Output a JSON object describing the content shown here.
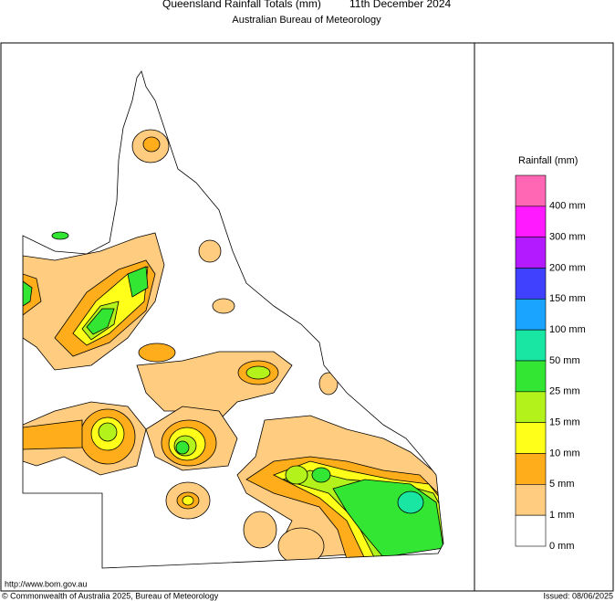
{
  "header": {
    "title": "Queensland Rainfall Totals (mm)",
    "date": "11th December 2024",
    "subtitle": "Australian Bureau of Meteorology"
  },
  "legend": {
    "title": "Rainfall (mm)",
    "colors": [
      "#ff66b3",
      "#ff1aff",
      "#b31aff",
      "#4040ff",
      "#1aa3ff",
      "#1ae6a3",
      "#33e633",
      "#b3f21a",
      "#ffff1a",
      "#ffad1a",
      "#ffcc80",
      "#ffffff"
    ],
    "labels": [
      "400 mm",
      "300 mm",
      "200 mm",
      "150 mm",
      "100 mm",
      "50 mm",
      "25 mm",
      "15 mm",
      "10 mm",
      "5 mm",
      "1 mm",
      "0 mm"
    ]
  },
  "footer": {
    "url": "http://www.bom.gov.au",
    "copyright": "© Commonwealth of Australia 2025, Bureau of Meteorology",
    "issued": "Issued: 08/06/2025"
  }
}
